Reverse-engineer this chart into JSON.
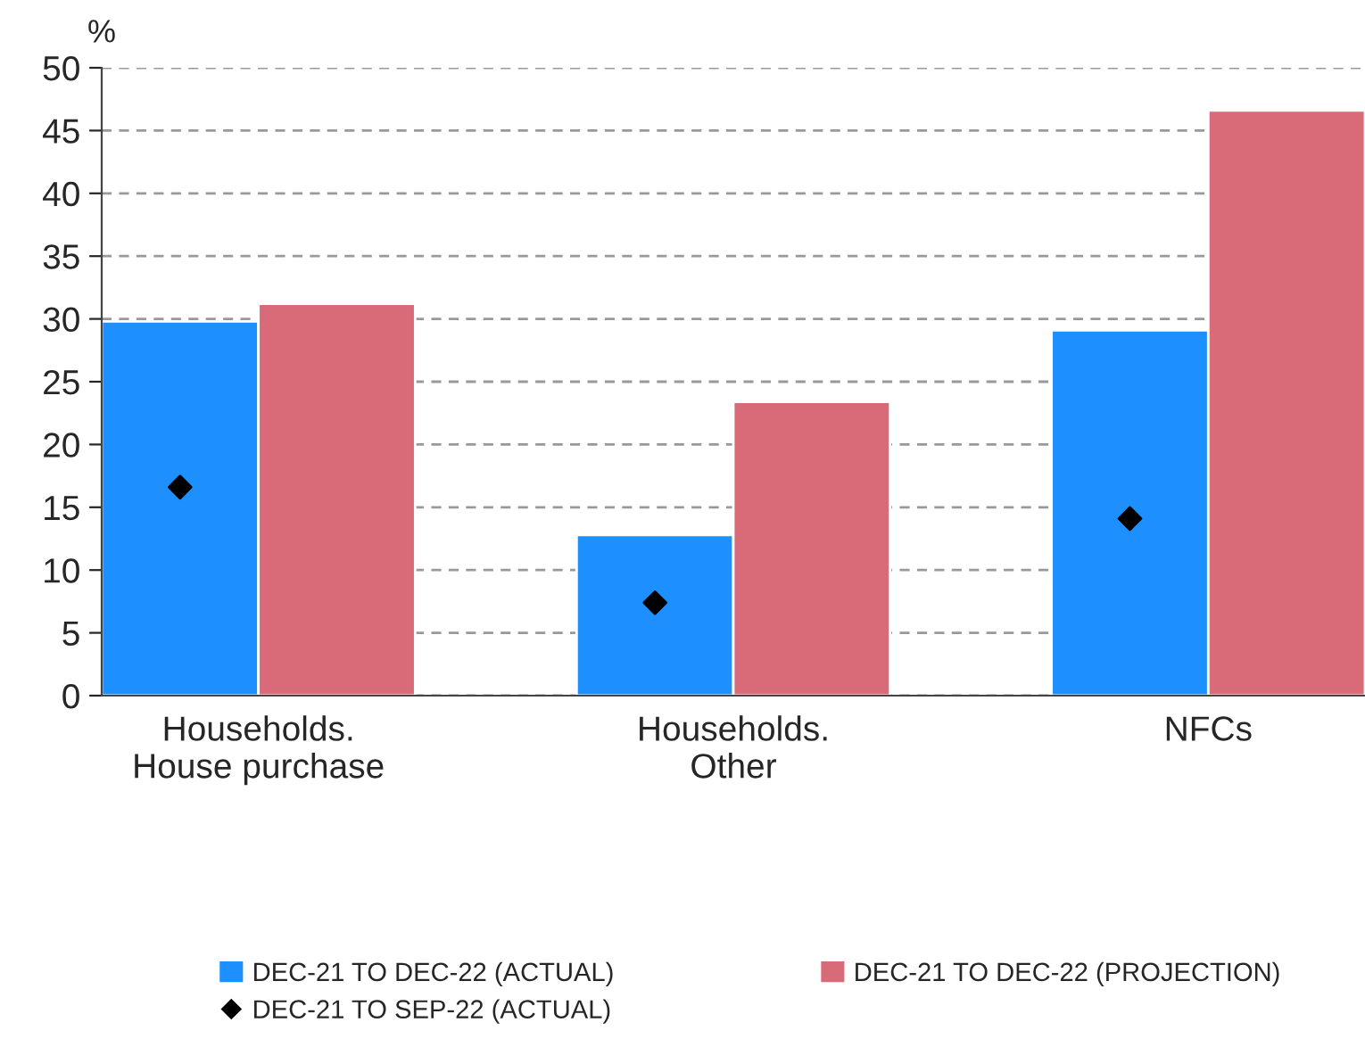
{
  "chart_data": {
    "type": "bar",
    "ylabel": "%",
    "categories": [
      "Households.\nHouse purchase",
      "Households.\nOther",
      "NFCs"
    ],
    "series": [
      {
        "name": "DEC-21 TO DEC-22 (ACTUAL)",
        "color": "#1e8fff",
        "values": [
          29.8,
          12.8,
          29.1
        ]
      },
      {
        "name": "DEC-21 TO DEC-22 (PROJECTION)",
        "color": "#d96b78",
        "values": [
          31.2,
          23.4,
          46.6
        ]
      },
      {
        "name": "DEC-21 TO SEP-22 (ACTUAL)",
        "type": "scatter",
        "color": "#000000",
        "marker": "diamond",
        "x": [
          "Households.\nHouse purchase",
          "Households.\nOther",
          "NFCs"
        ],
        "values": [
          16.6,
          7.4,
          14.1
        ]
      }
    ],
    "ylim": [
      0,
      50
    ],
    "yticks": [
      0,
      5,
      10,
      15,
      20,
      25,
      30,
      35,
      40,
      45,
      50
    ],
    "grid": "y",
    "legend": "bottom"
  }
}
